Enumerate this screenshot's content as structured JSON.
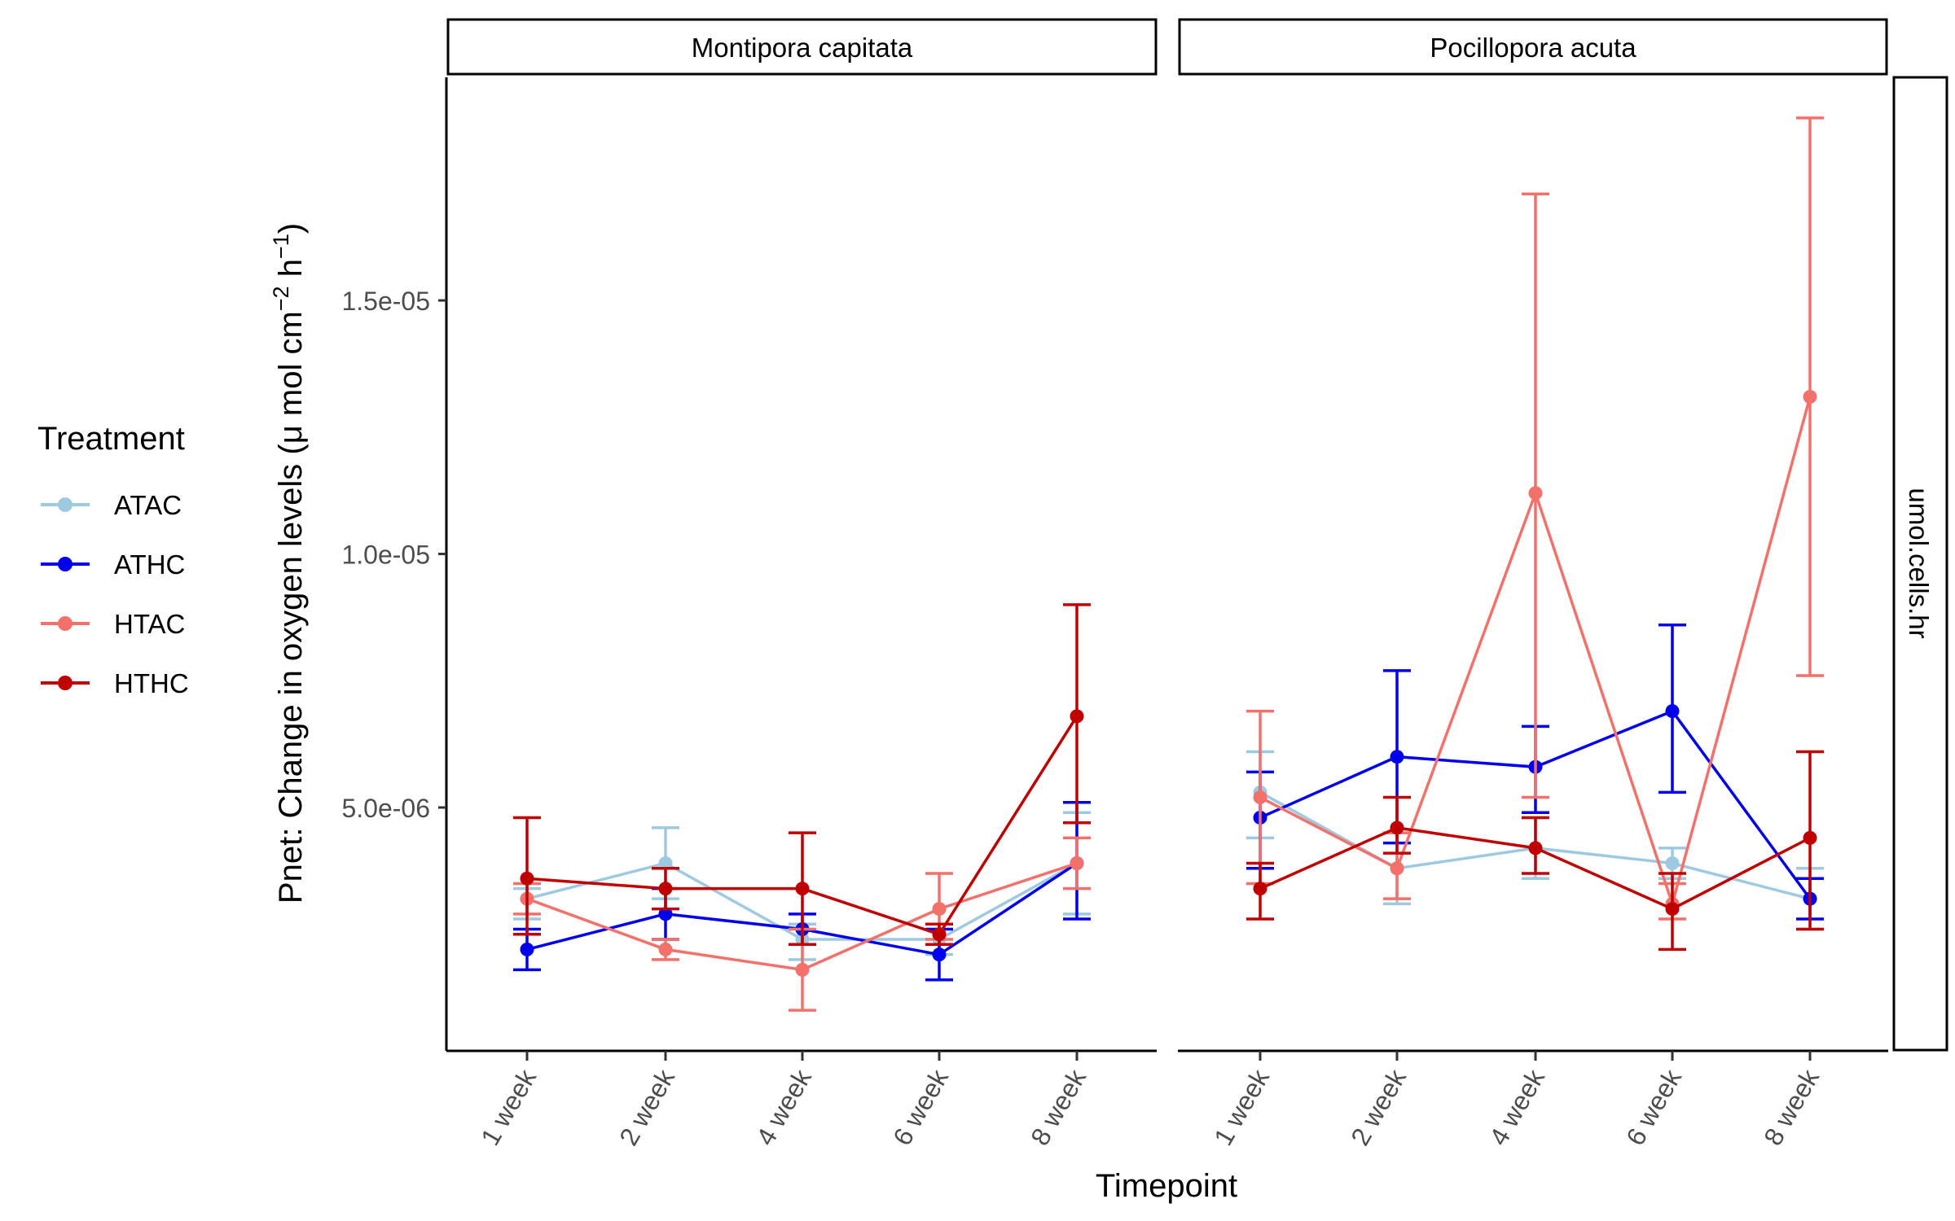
{
  "chart_data": {
    "type": "line",
    "xlabel": "Timepoint",
    "ylabel": "Pnet: Change in oxygen levels (μ mol cm⁻² h⁻¹)",
    "ylabel_parts": {
      "main": "Pnet: Change in oxygen levels (",
      "mu": "μ",
      "mid1": " mol cm",
      "sup1": "−2",
      "mid2": " h",
      "sup2": "−1",
      "end": ")"
    },
    "y_ticks": [
      {
        "value": 5e-06,
        "label": "5.0e-06"
      },
      {
        "value": 1e-05,
        "label": "1.0e-05"
      },
      {
        "value": 1.5e-05,
        "label": "1.5e-05"
      }
    ],
    "ylim": [
      2e-07,
      1.94e-05
    ],
    "categories": [
      "1 week",
      "2 week",
      "4 week",
      "6 week",
      "8 week"
    ],
    "strip_right": "umol.cells.hr",
    "legend": {
      "title": "Treatment",
      "position": "left",
      "entries": [
        {
          "name": "ATAC",
          "color": "#9ECAE1"
        },
        {
          "name": "ATHC",
          "color": "#0000EE"
        },
        {
          "name": "HTAC",
          "color": "#F4706B"
        },
        {
          "name": "HTHC",
          "color": "#C00000"
        }
      ]
    },
    "panels": [
      {
        "title": "Montipora capitata",
        "series": [
          {
            "name": "ATAC",
            "values": [
              3.2e-06,
              3.9e-06,
              2.4e-06,
              2.4e-06,
              3.9e-06
            ],
            "err_low": [
              2.8e-06,
              3.2e-06,
              2e-06,
              2.1e-06,
              2.9e-06
            ],
            "err_high": [
              3.4e-06,
              4.6e-06,
              2.7e-06,
              2.7e-06,
              4.9e-06
            ]
          },
          {
            "name": "ATHC",
            "values": [
              2.2e-06,
              2.9e-06,
              2.6e-06,
              2.1e-06,
              3.9e-06
            ],
            "err_low": [
              1.8e-06,
              2.4e-06,
              2.3e-06,
              1.6e-06,
              2.8e-06
            ],
            "err_high": [
              2.6e-06,
              3.4e-06,
              2.9e-06,
              2.6e-06,
              5.1e-06
            ]
          },
          {
            "name": "HTAC",
            "values": [
              3.2e-06,
              2.2e-06,
              1.8e-06,
              3e-06,
              3.9e-06
            ],
            "err_low": [
              2.9e-06,
              2e-06,
              1e-06,
              2.4e-06,
              3.4e-06
            ],
            "err_high": [
              3.5e-06,
              2.4e-06,
              2.6e-06,
              3.7e-06,
              4.4e-06
            ]
          },
          {
            "name": "HTHC",
            "values": [
              3.6e-06,
              3.4e-06,
              3.4e-06,
              2.5e-06,
              6.8e-06
            ],
            "err_low": [
              2.5e-06,
              3e-06,
              2.3e-06,
              2.3e-06,
              4.7e-06
            ],
            "err_high": [
              4.8e-06,
              3.8e-06,
              4.5e-06,
              2.7e-06,
              9e-06
            ]
          }
        ]
      },
      {
        "title": "Pocillopora acuta",
        "series": [
          {
            "name": "ATAC",
            "values": [
              5.3e-06,
              3.8e-06,
              4.2e-06,
              3.9e-06,
              3.2e-06
            ],
            "err_low": [
              4.4e-06,
              3.1e-06,
              3.6e-06,
              3.6e-06,
              2.6e-06
            ],
            "err_high": [
              6.1e-06,
              4.5e-06,
              4.8e-06,
              4.2e-06,
              3.8e-06
            ]
          },
          {
            "name": "ATHC",
            "values": [
              4.8e-06,
              6e-06,
              5.8e-06,
              6.9e-06,
              3.2e-06
            ],
            "err_low": [
              3.8e-06,
              4.3e-06,
              4.9e-06,
              5.3e-06,
              2.8e-06
            ],
            "err_high": [
              5.7e-06,
              7.7e-06,
              6.6e-06,
              8.6e-06,
              3.6e-06
            ]
          },
          {
            "name": "HTAC",
            "values": [
              5.2e-06,
              3.8e-06,
              1.12e-05,
              3.1e-06,
              1.31e-05
            ],
            "err_low": [
              3.5e-06,
              3.2e-06,
              5.2e-06,
              2.8e-06,
              7.6e-06
            ],
            "err_high": [
              6.9e-06,
              4.5e-06,
              1.71e-05,
              3.5e-06,
              1.86e-05
            ]
          },
          {
            "name": "HTHC",
            "values": [
              3.4e-06,
              4.6e-06,
              4.2e-06,
              3e-06,
              4.4e-06
            ],
            "err_low": [
              2.8e-06,
              4.1e-06,
              3.7e-06,
              2.2e-06,
              2.6e-06
            ],
            "err_high": [
              3.9e-06,
              5.2e-06,
              4.8e-06,
              3.7e-06,
              6.1e-06
            ]
          }
        ]
      }
    ]
  }
}
